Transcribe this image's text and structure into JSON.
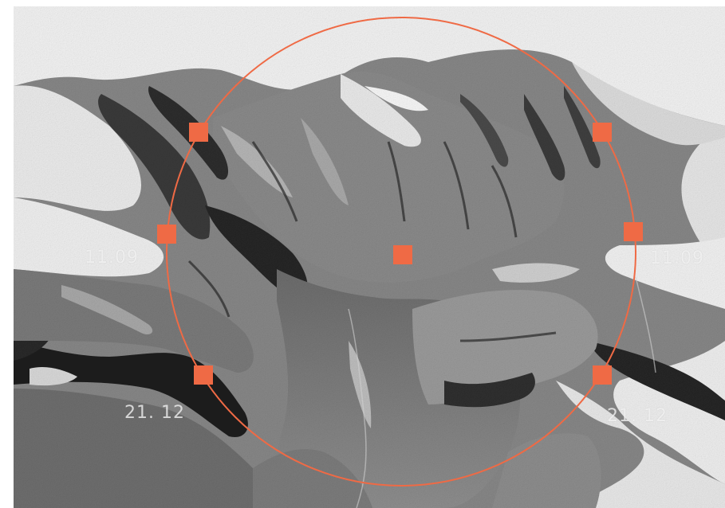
{
  "map": {
    "labels": {
      "left_mid": "11.09",
      "right_mid": "11.09",
      "left_low": "21. 12",
      "right_low": "21. 12"
    },
    "selection": {
      "shape": "circle",
      "handles": [
        "top-left",
        "top-right",
        "left",
        "right",
        "bottom-left",
        "bottom-right",
        "center"
      ]
    },
    "colors": {
      "accent": "#ef6a45",
      "snow": "#f4f4f4",
      "rock_dark": "#2f2f2f",
      "rock_mid": "#7d7d7d"
    }
  }
}
